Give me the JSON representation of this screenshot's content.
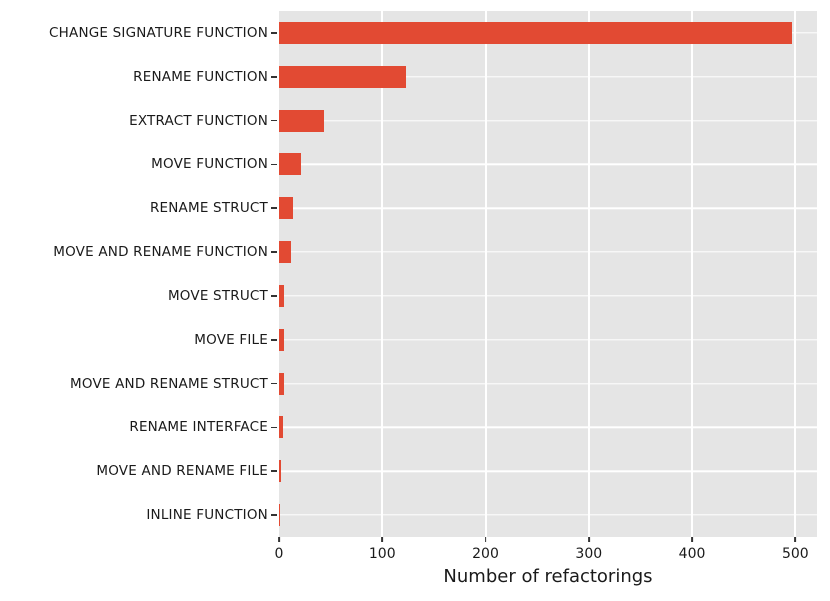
{
  "chart_data": {
    "type": "bar",
    "orientation": "horizontal",
    "title": "",
    "xlabel": "Number of refactorings",
    "ylabel": "",
    "categories": [
      "CHANGE SIGNATURE FUNCTION",
      "RENAME FUNCTION",
      "EXTRACT FUNCTION",
      "MOVE FUNCTION",
      "RENAME STRUCT",
      "MOVE AND RENAME FUNCTION",
      "MOVE STRUCT",
      "MOVE FILE",
      "MOVE AND RENAME STRUCT",
      "RENAME INTERFACE",
      "MOVE AND RENAME FILE",
      "INLINE FUNCTION"
    ],
    "values": [
      497,
      123,
      44,
      21,
      14,
      12,
      5,
      5,
      5,
      4,
      2,
      1
    ],
    "x_ticks": [
      0,
      100,
      200,
      300,
      400,
      500
    ],
    "x_tick_labels": [
      "0",
      "100",
      "200",
      "300",
      "400",
      "500"
    ],
    "xlim": [
      0,
      521
    ],
    "grid": true,
    "legend_position": "none",
    "style": "ggplot",
    "colors": {
      "bar": "#E24A33",
      "plot_background": "#E5E5E5",
      "grid": "#FFFFFF",
      "text": "#1a1a1a",
      "tick_mark": "#333333",
      "figure_background": "#FFFFFF"
    }
  }
}
